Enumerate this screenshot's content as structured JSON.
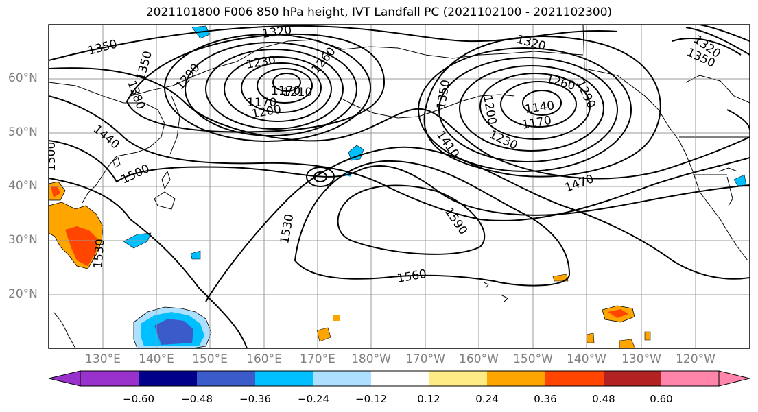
{
  "title": "2021101800 F006 850 hPa height, IVT Landfall PC (2021102100 - 2021102300)",
  "lat_labels": [
    "60°N",
    "50°N",
    "40°N",
    "30°N",
    "20°N"
  ],
  "lon_labels": [
    "130°E",
    "140°E",
    "150°E",
    "160°E",
    "170°E",
    "180°W",
    "170°W",
    "160°W",
    "150°W",
    "140°W",
    "130°W",
    "120°W"
  ],
  "colorbar": {
    "colors": [
      "#9932CC",
      "#00008B",
      "#3A5BC9",
      "#00BFFF",
      "#ADE0FF",
      "#FFFFFF",
      "#FFEB85",
      "#FFA500",
      "#FF4500",
      "#B22222",
      "#FF85AA"
    ],
    "ticks": [
      "−0.60",
      "−0.48",
      "−0.36",
      "−0.24",
      "−0.12",
      "0.12",
      "0.24",
      "0.36",
      "0.48",
      "0.60"
    ]
  },
  "contour_labels": [
    "1350",
    "1320",
    "1350",
    "1380",
    "1290",
    "1230",
    "1260",
    "1170",
    "1200",
    "1170",
    "1210",
    "1440",
    "1500",
    "1500",
    "1350",
    "1410",
    "1320",
    "1260",
    "1290",
    "1200",
    "1140",
    "1170",
    "1230",
    "1470",
    "1320",
    "1350",
    "1590",
    "1530",
    "1530",
    "1560"
  ]
}
